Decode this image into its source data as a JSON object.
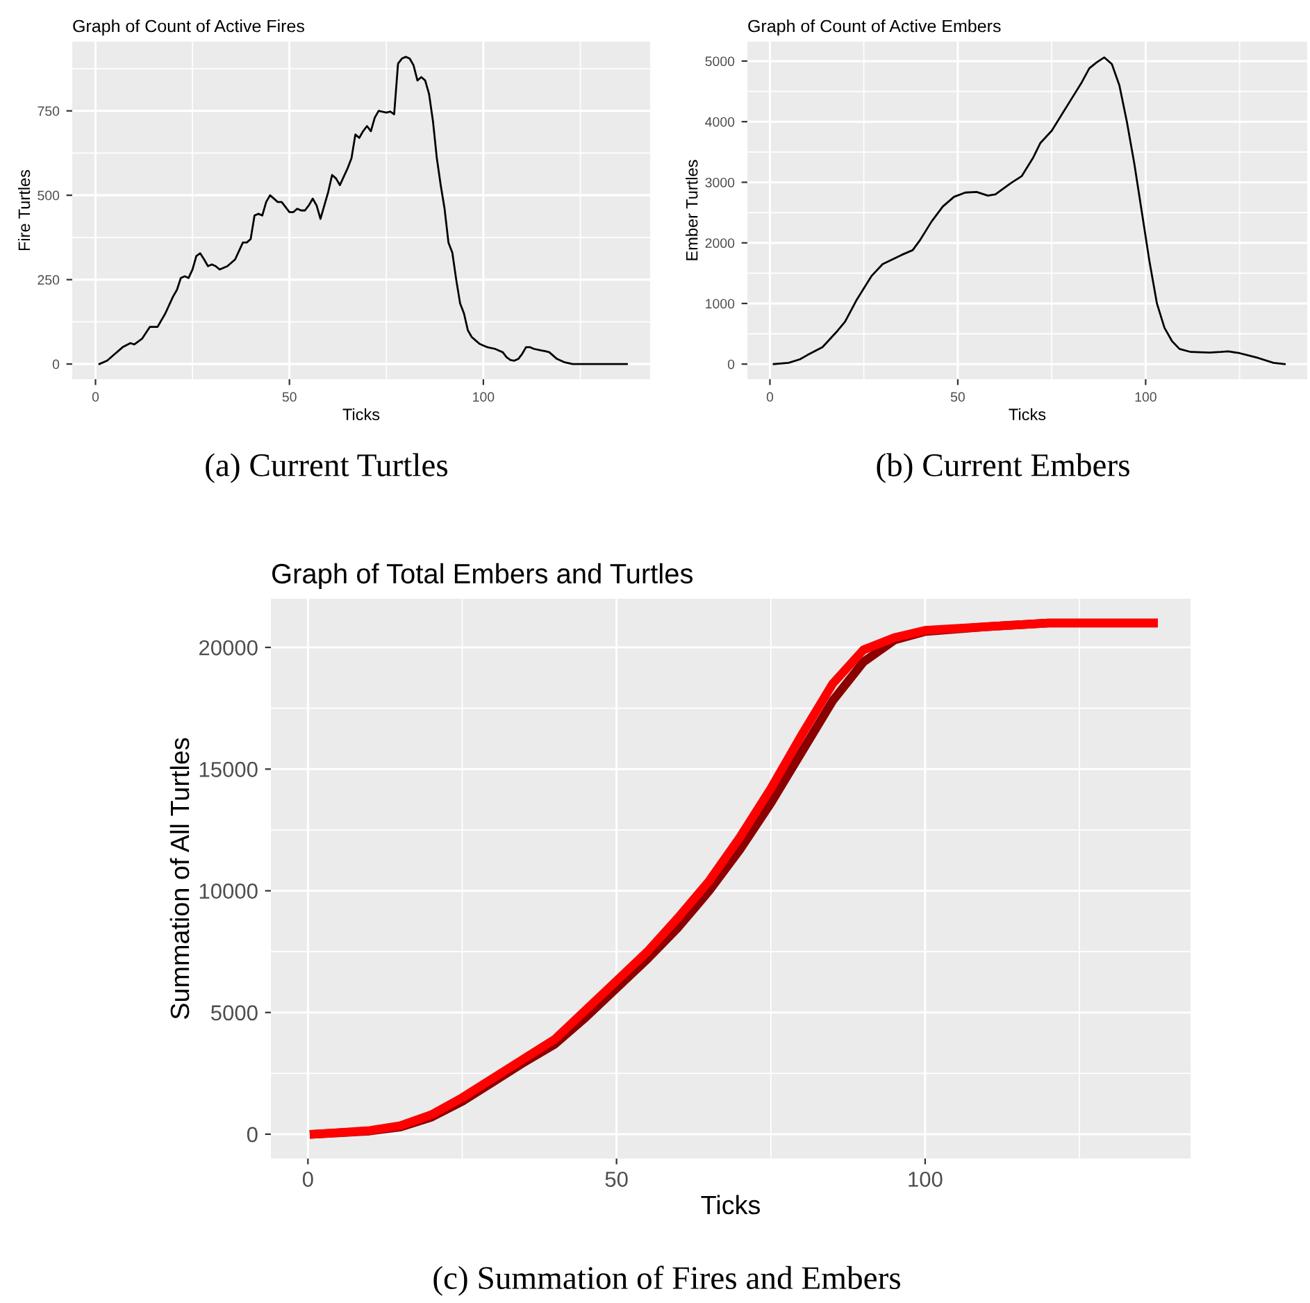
{
  "chart_data": [
    {
      "type": "line",
      "title": "Graph of Count of Active Fires",
      "xlabel": "Ticks",
      "ylabel": "Fire Turtles",
      "annotations": [
        "(a) Current Turtles"
      ],
      "series": [
        {
          "color": "#000000",
          "x": [
            1,
            3,
            5,
            7,
            9,
            10,
            12,
            14,
            16,
            18,
            20,
            21,
            22,
            23,
            24,
            25,
            26,
            27,
            28,
            29,
            30,
            31,
            32,
            34,
            36,
            38,
            39,
            40,
            41,
            42,
            43,
            44,
            45,
            47,
            48,
            50,
            51,
            52,
            53,
            54,
            55,
            56,
            57,
            58,
            60,
            61,
            62,
            63,
            65,
            66,
            67,
            68,
            69,
            70,
            71,
            72,
            73,
            75,
            76,
            77,
            78,
            79,
            80,
            81,
            82,
            83,
            84,
            85,
            86,
            87,
            88,
            89,
            90,
            91,
            92,
            93,
            94,
            95,
            96,
            97,
            98,
            99,
            100,
            101,
            103,
            104,
            105,
            106,
            107,
            108,
            109,
            110,
            111,
            112,
            113,
            115,
            116,
            117,
            119,
            121,
            123,
            137
          ],
          "values": [
            0,
            10,
            30,
            50,
            62,
            58,
            75,
            110,
            110,
            150,
            200,
            220,
            255,
            260,
            255,
            280,
            320,
            328,
            310,
            290,
            295,
            290,
            280,
            290,
            310,
            360,
            360,
            370,
            440,
            445,
            440,
            480,
            500,
            480,
            480,
            450,
            450,
            460,
            455,
            455,
            470,
            490,
            470,
            430,
            510,
            560,
            550,
            530,
            580,
            610,
            680,
            670,
            690,
            705,
            690,
            730,
            750,
            745,
            748,
            740,
            890,
            905,
            910,
            905,
            885,
            840,
            850,
            840,
            800,
            720,
            610,
            530,
            460,
            360,
            330,
            250,
            180,
            150,
            100,
            80,
            70,
            60,
            55,
            50,
            45,
            40,
            35,
            20,
            12,
            10,
            15,
            30,
            50,
            50,
            45,
            40,
            38,
            35,
            15,
            5,
            0,
            0
          ]
        }
      ],
      "xlim": [
        -6,
        143
      ],
      "xticks": [
        0,
        50,
        100
      ],
      "ylim": [
        -45,
        955
      ],
      "yticks": [
        0,
        250,
        500,
        750
      ],
      "grid": true,
      "line_style": "solid"
    },
    {
      "type": "line",
      "title": "Graph of Count of Active Embers",
      "xlabel": "Ticks",
      "ylabel": "Ember Turtles",
      "annotations": [
        "(b) Current Embers"
      ],
      "series": [
        {
          "color": "#000000",
          "x": [
            1,
            5,
            8,
            10,
            14,
            18,
            20,
            23,
            27,
            30,
            35,
            38,
            40,
            43,
            46,
            49,
            52,
            55,
            58,
            60,
            64,
            67,
            70,
            72,
            75,
            78,
            80,
            83,
            85,
            87,
            89,
            91,
            93,
            95,
            97,
            99,
            101,
            103,
            105,
            107,
            109,
            112,
            117,
            120,
            122,
            125,
            130,
            134,
            137
          ],
          "values": [
            0,
            20,
            80,
            150,
            280,
            550,
            700,
            1050,
            1450,
            1650,
            1800,
            1880,
            2050,
            2350,
            2600,
            2760,
            2830,
            2840,
            2780,
            2800,
            2980,
            3100,
            3400,
            3650,
            3850,
            4150,
            4350,
            4650,
            4880,
            4980,
            5060,
            4950,
            4600,
            4000,
            3300,
            2500,
            1700,
            1000,
            600,
            380,
            250,
            200,
            190,
            200,
            210,
            180,
            100,
            20,
            0
          ]
        }
      ],
      "xlim": [
        -6,
        143
      ],
      "xticks": [
        0,
        50,
        100
      ],
      "ylim": [
        -250,
        5320
      ],
      "yticks": [
        0,
        1000,
        2000,
        3000,
        4000,
        5000
      ],
      "grid": true,
      "line_style": "solid"
    },
    {
      "type": "line",
      "title": "Graph of Total Embers and Turtles",
      "xlabel": "Ticks",
      "ylabel": "Summation of All Turtles",
      "annotations": [
        "(c) Summation of Fires and Embers"
      ],
      "series": [
        {
          "color": "#8b0000",
          "x": [
            1,
            10,
            15,
            20,
            25,
            30,
            35,
            40,
            45,
            50,
            55,
            60,
            65,
            70,
            75,
            80,
            85,
            90,
            95,
            100,
            110,
            120,
            137
          ],
          "values": [
            0,
            130,
            300,
            700,
            1350,
            2150,
            2950,
            3700,
            4800,
            6000,
            7200,
            8500,
            10000,
            11700,
            13600,
            15700,
            17800,
            19400,
            20300,
            20650,
            20850,
            21000,
            21000
          ]
        },
        {
          "color": "#ff0000",
          "x": [
            1,
            10,
            15,
            20,
            25,
            30,
            35,
            40,
            45,
            50,
            55,
            60,
            65,
            70,
            75,
            80,
            85,
            90,
            95,
            100,
            110,
            120,
            137
          ],
          "values": [
            0,
            150,
            350,
            800,
            1500,
            2300,
            3100,
            3900,
            5100,
            6300,
            7500,
            8900,
            10400,
            12200,
            14200,
            16400,
            18500,
            19900,
            20400,
            20700,
            20850,
            21000,
            21000
          ]
        }
      ],
      "xlim": [
        -6,
        143
      ],
      "xticks": [
        0,
        50,
        100
      ],
      "ylim": [
        -1000,
        22000
      ],
      "yticks": [
        0,
        5000,
        10000,
        15000,
        20000
      ],
      "grid": true,
      "line_style": "solid"
    }
  ]
}
